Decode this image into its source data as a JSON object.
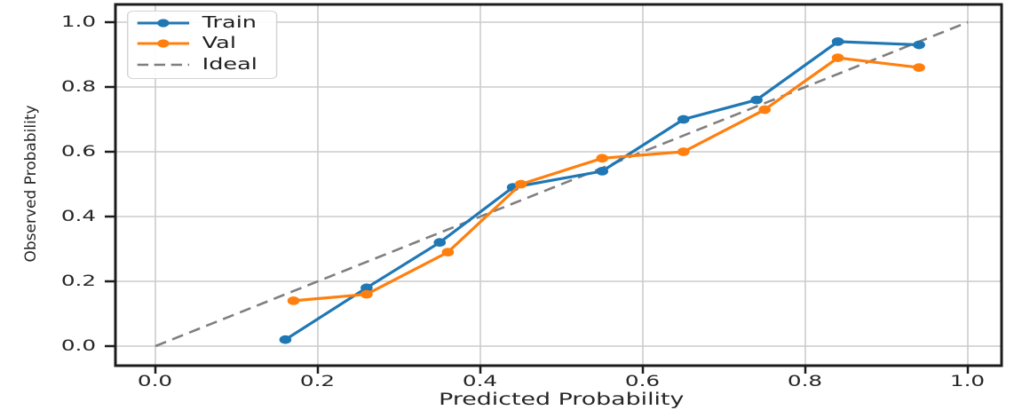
{
  "chart_data": {
    "type": "line",
    "title": "",
    "xlabel": "Predicted Probability",
    "ylabel": "Observed Probability",
    "xlim": [
      -0.05,
      1.05
    ],
    "ylim": [
      -0.05,
      1.05
    ],
    "grid": true,
    "legend_position": "upper-left",
    "x_ticks": [
      0.0,
      0.2,
      0.4,
      0.6,
      0.8,
      1.0
    ],
    "y_ticks": [
      0.0,
      0.2,
      0.4,
      0.6,
      0.8,
      1.0
    ],
    "x_tick_labels": [
      "0.0",
      "0.2",
      "0.4",
      "0.6",
      "0.8",
      "1.0"
    ],
    "y_tick_labels": [
      "0.0",
      "0.2",
      "0.4",
      "0.6",
      "0.8",
      "1.0"
    ],
    "series": [
      {
        "name": "Train",
        "color": "#1f77b4",
        "style": "solid",
        "marker": "circle",
        "x": [
          0.16,
          0.26,
          0.35,
          0.44,
          0.55,
          0.65,
          0.74,
          0.84,
          0.94
        ],
        "y": [
          0.02,
          0.18,
          0.32,
          0.49,
          0.54,
          0.7,
          0.76,
          0.94,
          0.93
        ]
      },
      {
        "name": "Val",
        "color": "#ff7f0e",
        "style": "solid",
        "marker": "circle",
        "x": [
          0.17,
          0.26,
          0.36,
          0.45,
          0.55,
          0.65,
          0.75,
          0.84,
          0.94
        ],
        "y": [
          0.14,
          0.16,
          0.29,
          0.5,
          0.58,
          0.6,
          0.73,
          0.89,
          0.86
        ]
      },
      {
        "name": "Ideal",
        "color": "#7f7f7f",
        "style": "dashed",
        "marker": "none",
        "x": [
          0.0,
          1.0
        ],
        "y": [
          0.0,
          1.0
        ]
      }
    ],
    "colors": {
      "grid": "#cccccc",
      "spine": "#1c1c1c",
      "text": "#262626",
      "background": "#ffffff"
    }
  }
}
